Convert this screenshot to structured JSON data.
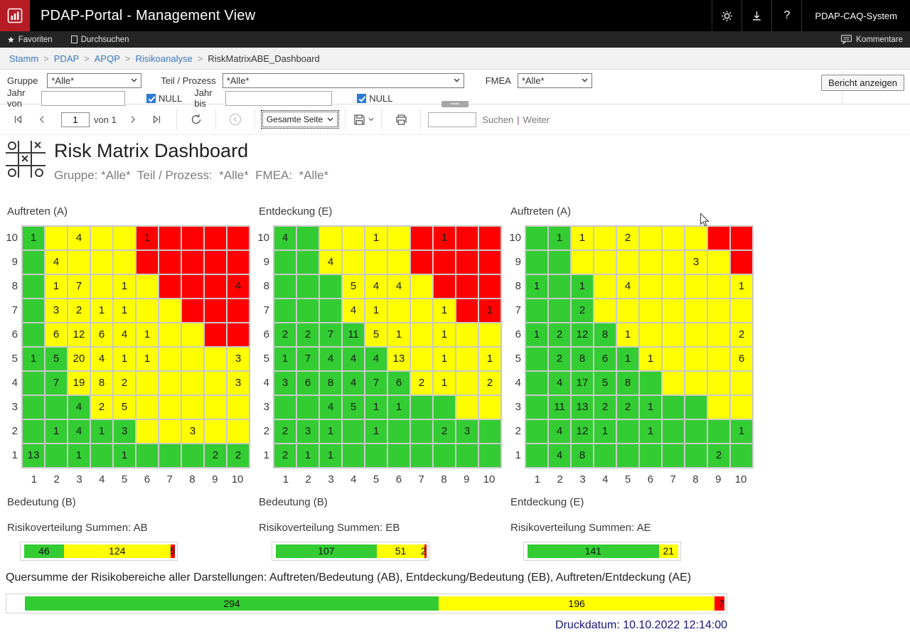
{
  "app": {
    "title": "PDAP-Portal - Management View",
    "system": "PDAP-CAQ-System",
    "brand_color": "#b71c25",
    "help_label": "?"
  },
  "nav": {
    "favorites": "Favoriten",
    "browse": "Durchsuchen",
    "comments": "Kommentare"
  },
  "breadcrumb": {
    "links": [
      "Stamm",
      "PDAP",
      "APQP",
      "Risikoanalyse"
    ],
    "current": "RiskMatrixABE_Dashboard"
  },
  "filters": {
    "gruppe_label": "Gruppe",
    "gruppe_value": "*Alle*",
    "teil_label": "Teil / Prozess",
    "teil_value": "*Alle*",
    "fmea_label": "FMEA",
    "fmea_value": "*Alle*",
    "jahr_von_label": "Jahr von",
    "jahr_bis_label": "Jahr bis",
    "null_label": "NULL",
    "bericht_button": "Bericht anzeigen"
  },
  "toolbar": {
    "page_value": "1",
    "page_total_label": "von 1",
    "zoom_value": "Gesamte Seite",
    "search_label": "Suchen",
    "weiter_label": "Weiter"
  },
  "report": {
    "title": "Risk Matrix Dashboard",
    "subtitle": "Gruppe: *Alle*  Teil / Prozess:  *Alle*  FMEA:  *Alle*",
    "quersumme_text": "Quersumme der Risikobereiche aller Darstellungen: Auftreten/Bedeutung (AB), Entdeckung/Bedeutung (EB), Auftreten/Entdeckung (AE)",
    "druckdatum": "Druckdatum: 10.10.2022 12:14:00"
  },
  "palette": {
    "g": "#33cc33",
    "y": "#ffff00",
    "r": "#ff0000"
  },
  "chart_data": [
    {
      "type": "heatmap",
      "id": "matrix-AB",
      "title": "Auftreten (A)",
      "xlabel": "Bedeutung (B)",
      "x_ticks": [
        1,
        2,
        3,
        4,
        5,
        6,
        7,
        8,
        9,
        10
      ],
      "y_ticks": [
        10,
        9,
        8,
        7,
        6,
        5,
        4,
        3,
        2,
        1
      ],
      "rows": [
        [
          "g:1",
          "y",
          "y:4",
          "y",
          "y",
          "r:1",
          "r",
          "r",
          "r",
          "r"
        ],
        [
          "g",
          "y:4",
          "y",
          "y",
          "y",
          "r",
          "r",
          "r",
          "r",
          "r"
        ],
        [
          "g",
          "y:1",
          "y:7",
          "y",
          "y:1",
          "y",
          "r",
          "r",
          "r",
          "r:4"
        ],
        [
          "g",
          "y:3",
          "y:2",
          "y:1",
          "y:1",
          "y",
          "y",
          "r",
          "r",
          "r"
        ],
        [
          "g",
          "y:6",
          "y:12",
          "y:6",
          "y:4",
          "y:1",
          "y",
          "y",
          "r",
          "r"
        ],
        [
          "g:1",
          "g:5",
          "y:20",
          "y:4",
          "y:1",
          "y:1",
          "y",
          "y",
          "y",
          "y:3"
        ],
        [
          "g",
          "g:7",
          "y:19",
          "y:8",
          "y:2",
          "y",
          "y",
          "y",
          "y",
          "y:3"
        ],
        [
          "g",
          "g",
          "g:4",
          "y:2",
          "y:5",
          "y",
          "y",
          "y",
          "y",
          "y"
        ],
        [
          "g",
          "g:1",
          "g:4",
          "g:1",
          "g:3",
          "y",
          "y",
          "y:3",
          "y",
          "y"
        ],
        [
          "g:13",
          "g",
          "g:1",
          "g",
          "g:1",
          "g",
          "g",
          "g",
          "g:2",
          "g:2"
        ]
      ]
    },
    {
      "type": "heatmap",
      "id": "matrix-EB",
      "title": "Entdeckung (E)",
      "xlabel": "Bedeutung (B)",
      "x_ticks": [
        1,
        2,
        3,
        4,
        5,
        6,
        7,
        8,
        9,
        10
      ],
      "y_ticks": [
        10,
        9,
        8,
        7,
        6,
        5,
        4,
        3,
        2,
        1
      ],
      "rows": [
        [
          "g:4",
          "g",
          "y",
          "y",
          "y:1",
          "y",
          "r",
          "r:1",
          "r",
          "r"
        ],
        [
          "g",
          "g",
          "y:4",
          "y",
          "y",
          "y",
          "r",
          "r",
          "r",
          "r"
        ],
        [
          "g",
          "g",
          "g",
          "y:5",
          "y:4",
          "y:4",
          "y",
          "r",
          "r",
          "r"
        ],
        [
          "g",
          "g",
          "g",
          "y:4",
          "y:1",
          "y",
          "y",
          "y:1",
          "r",
          "r:1"
        ],
        [
          "g:2",
          "g:2",
          "g:7",
          "g:11",
          "y:5",
          "y:1",
          "y",
          "y:1",
          "y",
          "y"
        ],
        [
          "g:1",
          "g:7",
          "g:4",
          "g:4",
          "g:4",
          "y:13",
          "y",
          "y:1",
          "y",
          "y:1"
        ],
        [
          "g:3",
          "g:6",
          "g:8",
          "g:4",
          "g:7",
          "g:6",
          "y:2",
          "y:1",
          "y",
          "y:2"
        ],
        [
          "g",
          "g",
          "g:4",
          "g:5",
          "g:1",
          "g:1",
          "g",
          "g",
          "y",
          "y"
        ],
        [
          "g:2",
          "g:3",
          "g:1",
          "g",
          "g:1",
          "g",
          "g",
          "g:2",
          "g:3",
          "g"
        ],
        [
          "g:2",
          "g:1",
          "g:1",
          "g",
          "g",
          "g",
          "g",
          "g",
          "g",
          "g"
        ]
      ]
    },
    {
      "type": "heatmap",
      "id": "matrix-AE",
      "title": "Auftreten (A)",
      "xlabel": "Entdeckung (E)",
      "x_ticks": [
        1,
        2,
        3,
        4,
        5,
        6,
        7,
        8,
        9,
        10
      ],
      "y_ticks": [
        10,
        9,
        8,
        7,
        6,
        5,
        4,
        3,
        2,
        1
      ],
      "rows": [
        [
          "g",
          "g:1",
          "y:1",
          "y",
          "y:2",
          "y",
          "y",
          "y",
          "r",
          "r"
        ],
        [
          "g",
          "g",
          "y",
          "y",
          "y",
          "y",
          "y",
          "y:3",
          "y",
          "r"
        ],
        [
          "g:1",
          "g",
          "g:1",
          "y",
          "y:4",
          "y",
          "y",
          "y",
          "y",
          "y:1"
        ],
        [
          "g",
          "g",
          "g:2",
          "y",
          "y",
          "y",
          "y",
          "y",
          "y",
          "y"
        ],
        [
          "g:1",
          "g:2",
          "g:12",
          "g:8",
          "y:1",
          "y",
          "y",
          "y",
          "y",
          "y:2"
        ],
        [
          "g",
          "g:2",
          "g:8",
          "g:6",
          "g:1",
          "y:1",
          "y",
          "y",
          "y",
          "y:6"
        ],
        [
          "g",
          "g:4",
          "g:17",
          "g:5",
          "g:8",
          "g",
          "y",
          "y",
          "y",
          "y"
        ],
        [
          "g",
          "g:11",
          "g:13",
          "g:2",
          "g:2",
          "g:1",
          "g",
          "g",
          "y",
          "y"
        ],
        [
          "g",
          "g:4",
          "g:12",
          "g:1",
          "g",
          "g:1",
          "g",
          "g",
          "g",
          "g:1"
        ],
        [
          "g",
          "g:4",
          "g:8",
          "g",
          "g",
          "g",
          "g",
          "g",
          "g:2",
          "g"
        ]
      ]
    },
    {
      "type": "stacked_bar",
      "id": "sum-AB",
      "title": "Risikoverteilung Summen: AB",
      "segments": [
        {
          "color": "g",
          "value": 46
        },
        {
          "color": "y",
          "value": 124
        },
        {
          "color": "r",
          "value": 5
        }
      ]
    },
    {
      "type": "stacked_bar",
      "id": "sum-EB",
      "title": "Risikoverteilung Summen: EB",
      "segments": [
        {
          "color": "g",
          "value": 107
        },
        {
          "color": "y",
          "value": 51
        },
        {
          "color": "r",
          "value": 2
        }
      ]
    },
    {
      "type": "stacked_bar",
      "id": "sum-AE",
      "title": "Risikoverteilung Summen: AE",
      "segments": [
        {
          "color": "g",
          "value": 141
        },
        {
          "color": "y",
          "value": 21
        }
      ]
    },
    {
      "type": "stacked_bar",
      "id": "sum-total",
      "title": "",
      "segments": [
        {
          "color": "g",
          "value": 294
        },
        {
          "color": "y",
          "value": 196
        },
        {
          "color": "r",
          "value": 7
        }
      ]
    }
  ]
}
